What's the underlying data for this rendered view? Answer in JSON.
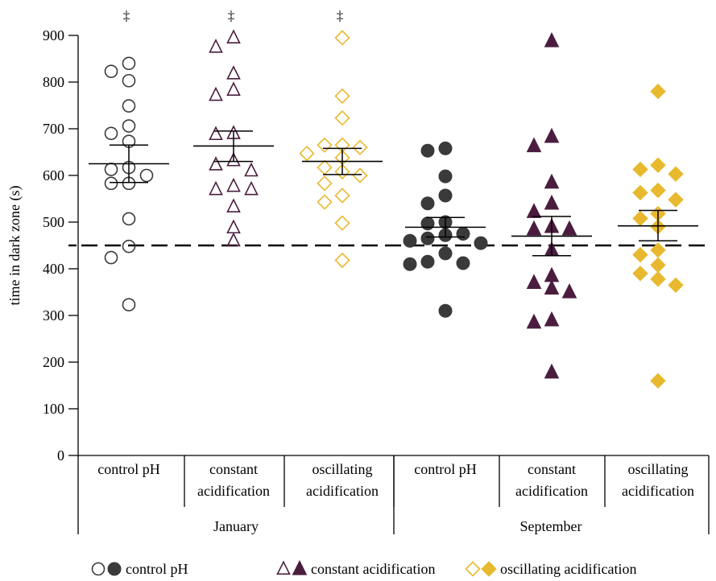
{
  "chart_data": {
    "type": "scatter",
    "ylabel": "time in dark zone (s)",
    "ylim": [
      0,
      900
    ],
    "yticks": [
      0,
      100,
      200,
      300,
      400,
      500,
      600,
      700,
      800,
      900
    ],
    "reference_line": 450,
    "marker_symbol": "‡",
    "periods": [
      "January",
      "September"
    ],
    "treatments": [
      {
        "key": "control",
        "label": [
          "control pH"
        ],
        "legend": "control pH",
        "marker": "circle"
      },
      {
        "key": "constant",
        "label": [
          "constant",
          "acidification"
        ],
        "legend": "constant acidification",
        "marker": "triangle"
      },
      {
        "key": "oscillating",
        "label": [
          "oscillating",
          "acidification"
        ],
        "legend": "oscillating acidification",
        "marker": "diamond"
      }
    ],
    "colors": {
      "control": "#3a3a3a",
      "constant": "#4a1d3f",
      "oscillating": "#e8b92e"
    },
    "groups": [
      {
        "period": "January",
        "treatment": "control",
        "filled": false,
        "marked": true,
        "mean": 625,
        "se_low": 585,
        "se_high": 665,
        "values": [
          840,
          823,
          803,
          749,
          706,
          690,
          673,
          617,
          613,
          600,
          583,
          583,
          507,
          448,
          424,
          323
        ]
      },
      {
        "period": "January",
        "treatment": "constant",
        "filled": false,
        "marked": true,
        "mean": 663,
        "se_low": 630,
        "se_high": 695,
        "values": [
          895,
          875,
          818,
          783,
          772,
          690,
          688,
          632,
          623,
          610,
          577,
          570,
          570,
          533,
          488,
          460
        ]
      },
      {
        "period": "January",
        "treatment": "oscillating",
        "filled": false,
        "marked": true,
        "mean": 630,
        "se_low": 602,
        "se_high": 658,
        "values": [
          895,
          770,
          723,
          665,
          665,
          660,
          647,
          638,
          617,
          608,
          600,
          583,
          557,
          543,
          498,
          418
        ]
      },
      {
        "period": "September",
        "treatment": "control",
        "filled": true,
        "marked": false,
        "mean": 489,
        "se_low": 468,
        "se_high": 510,
        "values": [
          658,
          653,
          598,
          557,
          540,
          500,
          497,
          475,
          472,
          465,
          460,
          455,
          433,
          415,
          412,
          410,
          310
        ]
      },
      {
        "period": "September",
        "treatment": "constant",
        "filled": true,
        "marked": false,
        "mean": 470,
        "se_low": 428,
        "se_high": 512,
        "values": [
          888,
          683,
          663,
          585,
          540,
          522,
          490,
          485,
          485,
          440,
          385,
          370,
          358,
          350,
          290,
          285,
          178
        ]
      },
      {
        "period": "September",
        "treatment": "oscillating",
        "filled": true,
        "marked": false,
        "mean": 492,
        "se_low": 460,
        "se_high": 525,
        "values": [
          780,
          622,
          613,
          603,
          568,
          563,
          548,
          518,
          508,
          490,
          440,
          430,
          408,
          390,
          378,
          365,
          160
        ]
      }
    ]
  }
}
